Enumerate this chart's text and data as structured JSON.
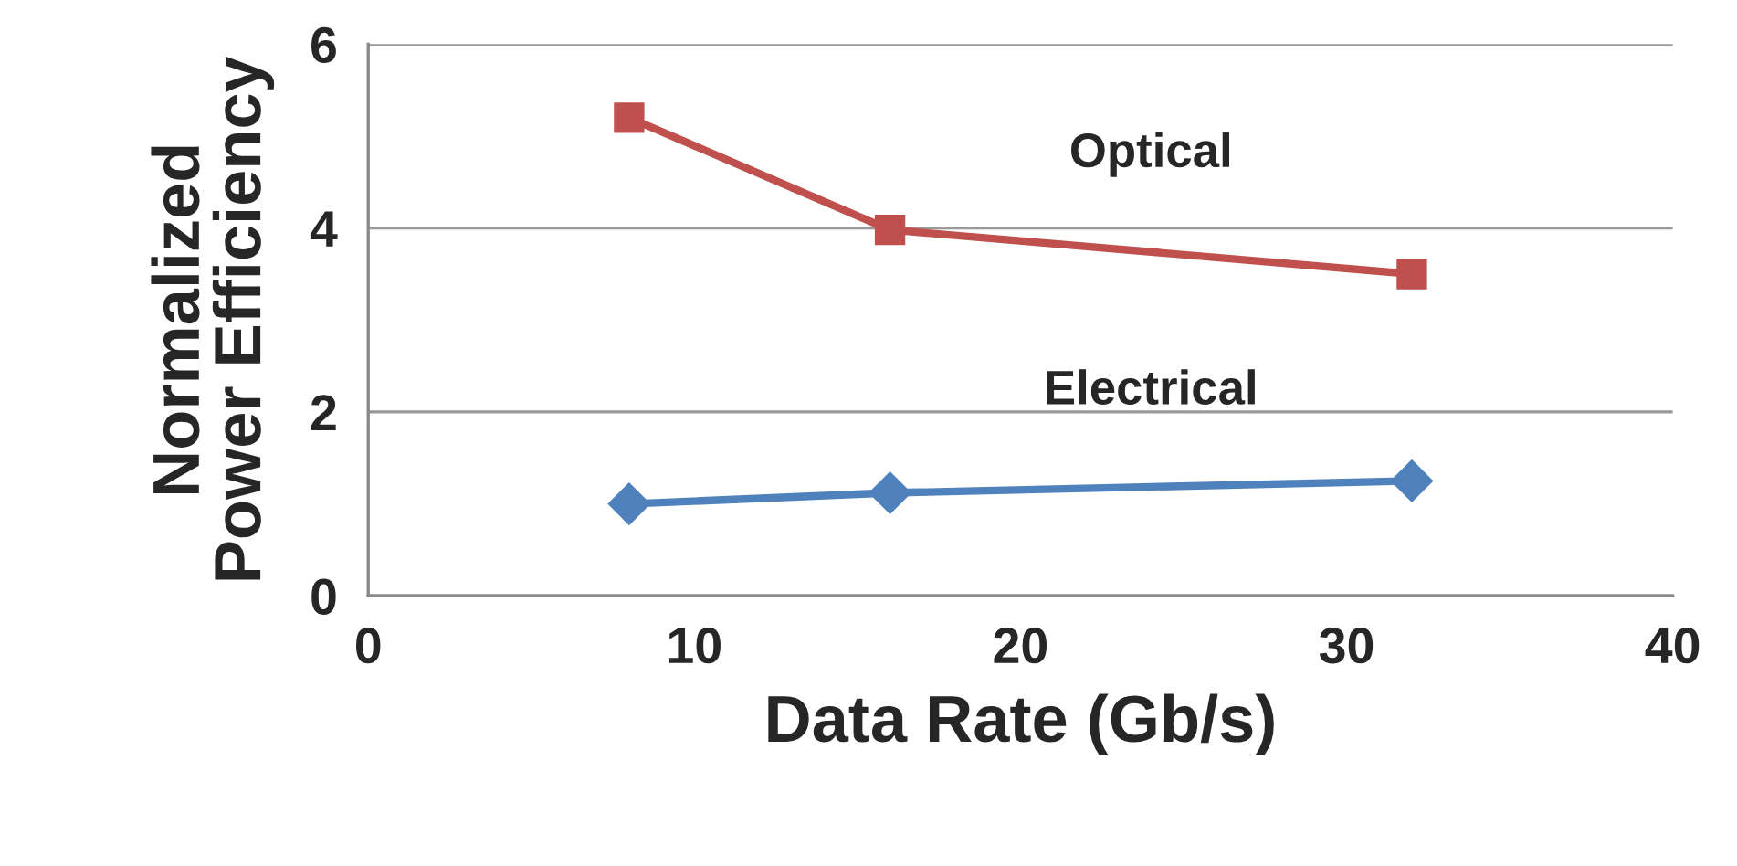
{
  "chart_data": {
    "type": "line",
    "xlabel": "Data Rate (Gb/s)",
    "ylabel": "Normalized\nPower Efficiency",
    "xlim": [
      0,
      40
    ],
    "xticks": [
      0,
      10,
      20,
      30,
      40
    ],
    "ylim": [
      0,
      6
    ],
    "yticks": [
      0,
      2,
      4,
      6
    ],
    "grid": "y",
    "legend": false,
    "line_style": "solid",
    "series": [
      {
        "name": "Optical",
        "color": "#c0504d",
        "marker": "square",
        "x": [
          8,
          16,
          32
        ],
        "values": [
          5.2,
          3.98,
          3.5
        ]
      },
      {
        "name": "Electrical",
        "color": "#4f81bd",
        "marker": "diamond",
        "x": [
          8,
          16,
          32
        ],
        "values": [
          1.0,
          1.12,
          1.25
        ]
      }
    ]
  }
}
